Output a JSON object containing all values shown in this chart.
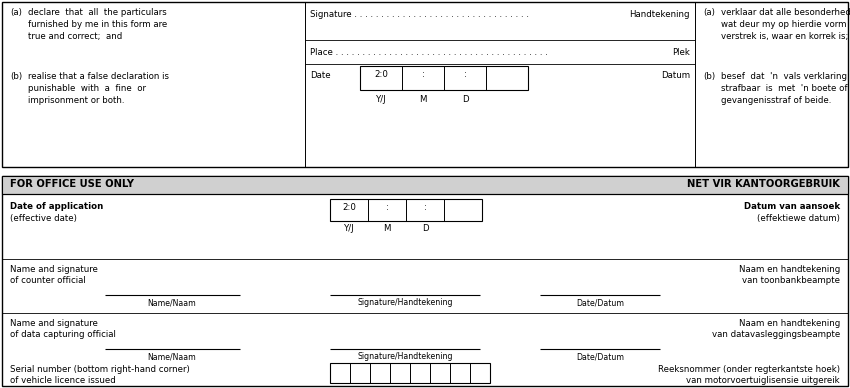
{
  "bg_color": "#ffffff",
  "border_color": "#000000",
  "header_bg": "#d0d0d0",
  "fs": 6.2,
  "fs_small": 5.6,
  "fs_header": 7.2,
  "top": {
    "left_a_label": "(a)",
    "left_a_text": "declare  that  all  the particulars\nfurnished by me in this form are\ntrue and correct;  and",
    "left_b_label": "(b)",
    "left_b_text": "realise that a false declaration is\npunishable  with  a  fine  or\nimprisonment or both.",
    "sig_text": "Signature . . . . . . . . . . . . . . . . . . . . . . . . . . . . . . . . .",
    "sig_right": "Handtekening",
    "place_text": "Place . . . . . . . . . . . . . . . . . . . . . . . . . . . . . . . . . . . . . . . .",
    "place_right": "Plek",
    "date_label": "Date",
    "date_right": "Datum",
    "date_box": "2:0",
    "colon": ":",
    "yj": "Y/J",
    "m": "M",
    "d": "D",
    "right_a_label": "(a)",
    "right_a_text": "verklaar dat alle besonderhede\nwat deur my op hierdie vorm\nverstrek is, waar en korrek is;  en",
    "right_b_label": "(b)",
    "right_b_text": "besef  dat  'n  vals verklaring\nstrafbaar  is  met  'n boete of\ngevangenisstraf of beide."
  },
  "office": {
    "hdr_left": "FOR OFFICE USE ONLY",
    "hdr_right": "NET VIR KANTOORGEBRUIK",
    "doa_label": "Date of application",
    "doa_sub": "(effective date)",
    "doa_right": "Datum van aansoek",
    "doa_right_sub": "(effektiewe datum)",
    "date_box": "2:0",
    "colon": ":",
    "yj": "Y/J",
    "m": "M",
    "d": "D",
    "ns1_label": "Name and signature",
    "ns1_sub": "of counter official",
    "ns1_name": "Name/Naam",
    "ns1_sig": "Signature/Handtekening",
    "ns1_date": "Date/Datum",
    "ns1_right": "Naam en handtekening",
    "ns1_right_sub": "van toonbankbeampte",
    "ns2_label": "Name and signature",
    "ns2_sub": "of data capturing official",
    "ns2_name": "Name/Naam",
    "ns2_sig": "Signature/Handtekening",
    "ns2_date": "Date/Datum",
    "ns2_right": "Naam en handtekening",
    "ns2_right_sub": "van datavasleggingsbeampte",
    "ser_label": "Serial number (bottom right-hand corner)",
    "ser_sub": "of vehicle licence issued",
    "ser_right": "Reeksnommer (onder regterkantste hoek)",
    "ser_right_sub": "van motorvoertuiglisensie uitgereik"
  }
}
